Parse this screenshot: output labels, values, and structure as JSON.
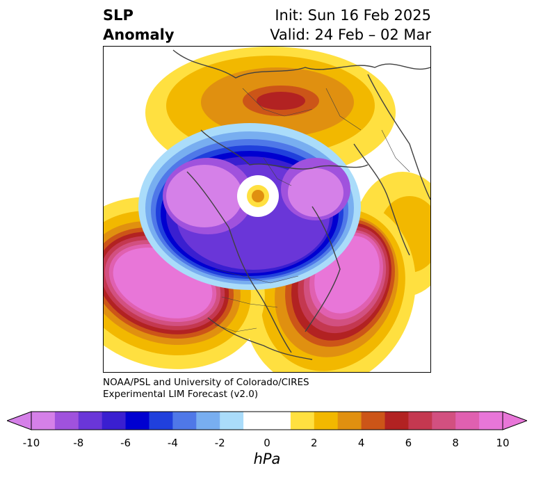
{
  "title": {
    "left_line1": "SLP",
    "left_line2": "Anomaly",
    "right_line1": "Init: Sun 16 Feb 2025",
    "right_line2": "Valid: 24 Feb – 02 Mar"
  },
  "credit": {
    "line1": "NOAA/PSL and University of Colorado/CIRES",
    "line2": "Experimental LIM Forecast (v2.0)"
  },
  "colorbar": {
    "unit": "hPa",
    "tick_labels": [
      "-10",
      "-8",
      "-6",
      "-4",
      "-2",
      "0",
      "2",
      "4",
      "6",
      "8",
      "10"
    ],
    "colors": [
      "#d580e8",
      "#a052dd",
      "#6a36d8",
      "#3a1fd0",
      "#0000d0",
      "#2040dc",
      "#4f78e8",
      "#78aef0",
      "#aadcfa",
      "#ffffff",
      "#ffffff",
      "#ffe040",
      "#f2b800",
      "#e09010",
      "#cc5518",
      "#b22222",
      "#c43850",
      "#d25080",
      "#e060b0",
      "#e876d8"
    ],
    "extend_min_color": "#d580e8",
    "extend_max_color": "#e876d8"
  }
}
